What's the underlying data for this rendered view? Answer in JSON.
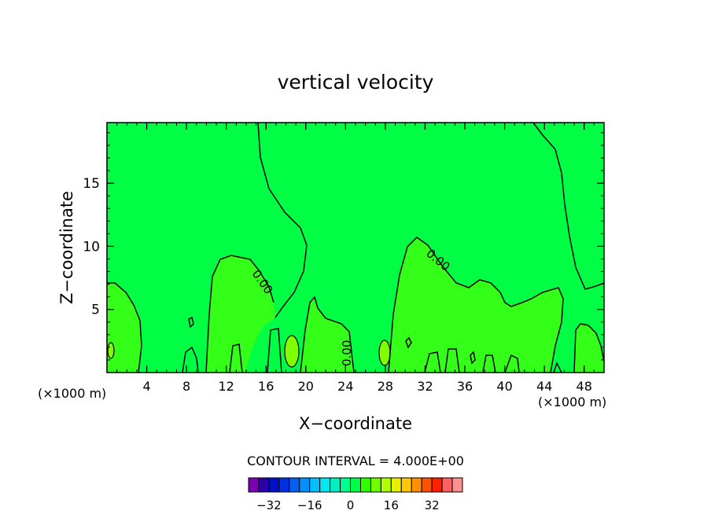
{
  "chart_data": {
    "type": "heatmap",
    "title": "vertical velocity",
    "xlabel": "X−coordinate",
    "ylabel": "Z−coordinate",
    "x_unit_left": "(×1000 m)",
    "x_unit_right": "(×1000 m)",
    "xlim": [
      0,
      50
    ],
    "ylim": [
      0,
      19.8
    ],
    "x_ticks": [
      4,
      8,
      12,
      16,
      20,
      24,
      28,
      32,
      36,
      40,
      44,
      48
    ],
    "x_tick_labels": [
      "4",
      "8",
      "12",
      "16",
      "20",
      "24",
      "28",
      "32",
      "36",
      "40",
      "44",
      "48"
    ],
    "y_ticks": [
      5,
      10,
      15
    ],
    "y_tick_labels": [
      "5",
      "10",
      "15"
    ],
    "background_color": "#00ff44",
    "contour_labels": [
      "0.00",
      "0.00",
      "0.00"
    ],
    "contour_interval_text": "CONTOUR INTERVAL = 4.000E+00",
    "colorbar": {
      "colors": [
        "#7a00b0",
        "#2a00a8",
        "#0010c8",
        "#0030e0",
        "#0060f0",
        "#0090ff",
        "#00c0ff",
        "#00e8f0",
        "#00f0c0",
        "#00ff90",
        "#00ff44",
        "#30ff00",
        "#70ff00",
        "#b0ff00",
        "#e8f000",
        "#ffc800",
        "#ff9000",
        "#ff5000",
        "#ff2000",
        "#ff6060",
        "#ff9090"
      ],
      "tick_values": [
        -32,
        -16,
        0,
        16,
        32
      ],
      "tick_labels": [
        "−32",
        "−16",
        "0",
        "16",
        "32"
      ],
      "range": [
        -40,
        44
      ]
    }
  }
}
